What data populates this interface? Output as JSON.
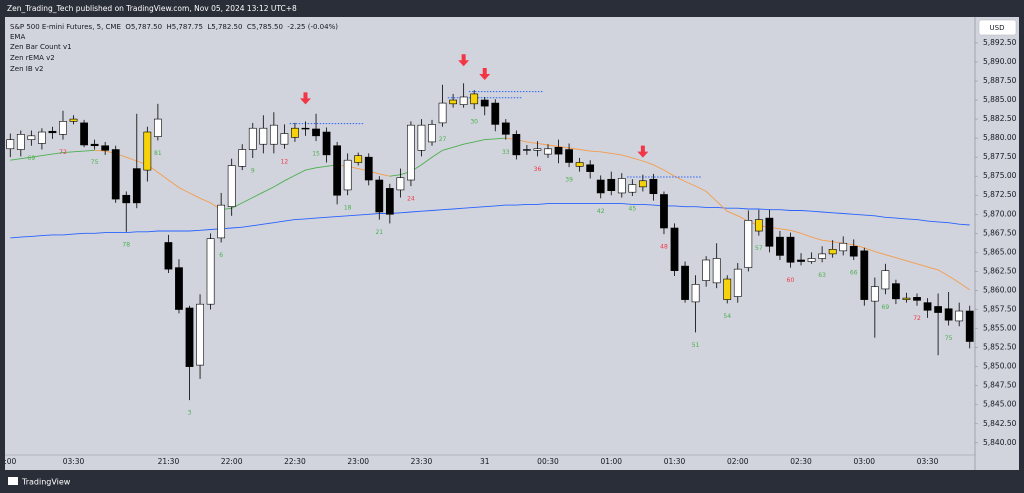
{
  "header": {
    "publisher": "Zen_Trading_Tech published on TradingView.com, Nov 05, 2024 13:12 UTC+8",
    "brand": "TradingView"
  },
  "chart_data": {
    "type": "candlestick",
    "legend_line": "S&P 500 E-mini Futures, 5, CME  O5,787.50  H5,787.75  L5,782.50  C5,785.50  -2.25 (-0.04%)",
    "currency": "USD",
    "categories": [
      ":00",
      null,
      null,
      null,
      null,
      null,
      "03:30",
      null,
      null,
      null,
      null,
      null,
      null,
      null,
      null,
      "21:30",
      null,
      null,
      null,
      null,
      null,
      "22:00",
      null,
      null,
      null,
      null,
      null,
      "22:30",
      null,
      null,
      null,
      null,
      null,
      "23:00",
      null,
      null,
      null,
      null,
      null,
      "23:30",
      null,
      null,
      null,
      null,
      null,
      "31",
      null,
      null,
      null,
      null,
      null,
      "00:30",
      null,
      null,
      null,
      null,
      null,
      "01:00",
      null,
      null,
      null,
      null,
      null,
      "01:30",
      null,
      null,
      null,
      null,
      null,
      "02:00",
      null,
      null,
      null,
      null,
      null,
      "02:30",
      null,
      null,
      null,
      null,
      null,
      "03:00",
      null,
      null,
      null,
      null,
      null,
      "03:30",
      null,
      null,
      null,
      null
    ],
    "ohlc": [
      [
        5878.6,
        5880.6,
        5877.5,
        5879.8
      ],
      [
        5878.5,
        5881,
        5877.6,
        5880.5
      ],
      [
        5879.8,
        5881,
        5879,
        5880.3
      ],
      [
        5879.3,
        5881.3,
        5878.5,
        5880.8
      ],
      [
        5880.9,
        5881.5,
        5879.9,
        5880.7
      ],
      [
        5880.5,
        5883.6,
        5879.8,
        5882.2
      ],
      [
        5882.2,
        5883,
        5881.8,
        5882.5
      ],
      [
        5882,
        5882.4,
        5878.8,
        5879.1
      ],
      [
        5879.2,
        5879.8,
        5878.5,
        5879
      ],
      [
        5879,
        5879.5,
        5877.8,
        5878.4
      ],
      [
        5878.5,
        5879,
        5871.5,
        5872
      ],
      [
        5872.5,
        5873,
        5867.7,
        5871.5
      ],
      [
        5876,
        5883.2,
        5870.8,
        5871.5
      ],
      [
        5875.8,
        5881.5,
        5874.3,
        5880.8
      ],
      [
        5880.2,
        5884.5,
        5879.7,
        5882.5
      ],
      [
        5866.3,
        5867.3,
        5862.3,
        5862.8
      ],
      [
        5863,
        5864.1,
        5857,
        5857.5
      ],
      [
        5857.7,
        5858,
        5845.6,
        5850
      ],
      [
        5850.2,
        5859.5,
        5848.4,
        5858.2
      ],
      [
        5858.2,
        5867.5,
        5857.5,
        5866.8
      ],
      [
        5866.9,
        5872.8,
        5866.3,
        5871.2
      ],
      [
        5871,
        5877.3,
        5869.8,
        5876.4
      ],
      [
        5876.3,
        5879.2,
        5875.8,
        5878.5
      ],
      [
        5878.5,
        5882,
        5877.4,
        5881.3
      ],
      [
        5879.2,
        5883,
        5878,
        5881.3
      ],
      [
        5879.2,
        5883.4,
        5878,
        5881.7
      ],
      [
        5879.2,
        5881.8,
        5878.6,
        5880.6
      ],
      [
        5880.1,
        5882,
        5879.5,
        5881.3
      ],
      [
        5881.3,
        5882.2,
        5880.3,
        5881.2
      ],
      [
        5881.2,
        5883.2,
        5879.6,
        5880.3
      ],
      [
        5880.8,
        5881.4,
        5876.8,
        5877.8
      ],
      [
        5879,
        5879.5,
        5871.3,
        5872.5
      ],
      [
        5873.2,
        5878,
        5872.5,
        5877.1
      ],
      [
        5877.7,
        5878.1,
        5876.4,
        5876.8
      ],
      [
        5877.5,
        5878,
        5873.8,
        5874.5
      ],
      [
        5874.5,
        5875,
        5869.3,
        5870.3
      ],
      [
        5873.4,
        5874,
        5868.8,
        5870
      ],
      [
        5873.2,
        5876,
        5872.2,
        5874.8
      ],
      [
        5874.5,
        5882.2,
        5873.7,
        5881.7
      ],
      [
        5878.4,
        5882.5,
        5877.6,
        5881.7
      ],
      [
        5879.5,
        5882.4,
        5879,
        5881.8
      ],
      [
        5882,
        5887,
        5881.5,
        5884.6
      ],
      [
        5884.5,
        5885.8,
        5884,
        5885
      ],
      [
        5884.4,
        5887.2,
        5884,
        5885.4
      ],
      [
        5884.5,
        5886.3,
        5883.8,
        5885.8
      ],
      [
        5885,
        5885.4,
        5883,
        5884.2
      ],
      [
        5884.6,
        5885.1,
        5880.9,
        5881.8
      ],
      [
        5882,
        5882.5,
        5879.8,
        5880.5
      ],
      [
        5880.5,
        5881,
        5877.2,
        5877.8
      ],
      [
        5878.5,
        5879.1,
        5877.8,
        5878.4
      ],
      [
        5878.4,
        5879.6,
        5877.6,
        5878.6
      ],
      [
        5877.9,
        5879.2,
        5877.4,
        5878.6
      ],
      [
        5878.8,
        5879.8,
        5876.7,
        5877.9
      ],
      [
        5878.5,
        5879.3,
        5876.2,
        5876.8
      ],
      [
        5876.8,
        5877.4,
        5875.6,
        5876.3
      ],
      [
        5876.5,
        5877.1,
        5874.7,
        5875.6
      ],
      [
        5874.5,
        5875.1,
        5872.1,
        5872.8
      ],
      [
        5874.6,
        5875.6,
        5872.5,
        5873.1
      ],
      [
        5872.8,
        5875.4,
        5872.2,
        5874.7
      ],
      [
        5872.9,
        5874.6,
        5872.4,
        5873.9
      ],
      [
        5873.6,
        5875.2,
        5873,
        5874.4
      ],
      [
        5874.6,
        5875.3,
        5871.8,
        5872.7
      ],
      [
        5872.6,
        5873,
        5867.4,
        5868.2
      ],
      [
        5868.2,
        5868.8,
        5861.9,
        5862.6
      ],
      [
        5863.2,
        5863.8,
        5858.4,
        5858.8
      ],
      [
        5858.5,
        5862,
        5854.5,
        5860.8
      ],
      [
        5861.3,
        5864.5,
        5860.5,
        5864
      ],
      [
        5861,
        5866.2,
        5860.3,
        5864.2
      ],
      [
        5861.5,
        5862,
        5858.3,
        5858.8
      ],
      [
        5859.2,
        5863.6,
        5858.4,
        5862.8
      ],
      [
        5863,
        5870.5,
        5862.5,
        5869.2
      ],
      [
        5869.3,
        5870.6,
        5867.2,
        5867.8
      ],
      [
        5869.5,
        5870.6,
        5865,
        5865.8
      ],
      [
        5867,
        5867.8,
        5864,
        5864.6
      ],
      [
        5867,
        5867.6,
        5863,
        5863.7
      ],
      [
        5864,
        5864.9,
        5863.3,
        5863.8
      ],
      [
        5863.8,
        5865,
        5863.5,
        5864.2
      ],
      [
        5864.2,
        5865.8,
        5863.7,
        5864.8
      ],
      [
        5864.8,
        5866.6,
        5864.3,
        5865.4
      ],
      [
        5865.2,
        5867.1,
        5864.6,
        5866.2
      ],
      [
        5865.8,
        5866.7,
        5864,
        5864.5
      ],
      [
        5865.2,
        5865.6,
        5858,
        5858.8
      ],
      [
        5858.6,
        5861.7,
        5853.8,
        5860.5
      ],
      [
        5860.2,
        5863.5,
        5859.5,
        5862.6
      ],
      [
        5860.9,
        5861.4,
        5858.2,
        5858.9
      ],
      [
        5859,
        5859.7,
        5858.4,
        5858.8
      ],
      [
        5859.1,
        5859.6,
        5858,
        5858.7
      ],
      [
        5858.4,
        5859,
        5856.4,
        5857.4
      ],
      [
        5857.9,
        5859.6,
        5851.5,
        5857.1
      ],
      [
        5857.6,
        5859.8,
        5855.4,
        5856.1
      ],
      [
        5856,
        5858.4,
        5855.3,
        5857.3
      ],
      [
        5857.3,
        5858,
        5852.4,
        5853.3
      ]
    ],
    "up_color": "#ffffff",
    "down_color": "#000000",
    "highlight_color": "#f5d20a",
    "highlighted": [
      6,
      13,
      27,
      33,
      42,
      44,
      54,
      60,
      68,
      71,
      78,
      85
    ],
    "series": [
      {
        "name": "EMA",
        "color": "#2962ff",
        "values": [
          5866.9,
          5867.0,
          5867.1,
          5867.2,
          5867.3,
          5867.3,
          5867.4,
          5867.5,
          5867.5,
          5867.6,
          5867.6,
          5867.6,
          5867.7,
          5867.7,
          5867.8,
          5867.8,
          5867.8,
          5867.8,
          5867.9,
          5868.0,
          5868.1,
          5868.2,
          5868.3,
          5868.5,
          5868.7,
          5868.9,
          5869.1,
          5869.3,
          5869.4,
          5869.5,
          5869.6,
          5869.7,
          5869.8,
          5869.9,
          5870.0,
          5870.1,
          5870.1,
          5870.2,
          5870.3,
          5870.4,
          5870.5,
          5870.6,
          5870.7,
          5870.8,
          5870.9,
          5871.0,
          5871.1,
          5871.2,
          5871.2,
          5871.3,
          5871.3,
          5871.4,
          5871.4,
          5871.4,
          5871.4,
          5871.4,
          5871.4,
          5871.4,
          5871.4,
          5871.3,
          5871.3,
          5871.2,
          5871.1,
          5871.1,
          5871.0,
          5871.0,
          5870.9,
          5870.9,
          5870.8,
          5870.8,
          5870.7,
          5870.7,
          5870.6,
          5870.6,
          5870.5,
          5870.5,
          5870.4,
          5870.3,
          5870.2,
          5870.1,
          5870.0,
          5869.9,
          5869.8,
          5869.6,
          5869.5,
          5869.4,
          5869.3,
          5869.1,
          5869.0,
          5868.9,
          5868.7,
          5868.6
        ]
      },
      {
        "name": "Zen rEMA v2",
        "rising_color": "#4caf50",
        "falling_color": "#f59c4c",
        "values": [
          5877.1,
          5877.3,
          5877.5,
          5877.7,
          5877.9,
          5878.1,
          5878.2,
          5878.3,
          5878.4,
          5878.3,
          5878.0,
          5877.5,
          5877.0,
          5876.5,
          5875.5,
          5874.5,
          5873.5,
          5872.8,
          5872.1,
          5871.5,
          5870.6,
          5870.8,
          5871.5,
          5872.2,
          5872.9,
          5873.6,
          5874.4,
          5875.1,
          5875.8,
          5876.1,
          5876.3,
          5876.5,
          5876.3,
          5876.0,
          5875.7,
          5875.3,
          5875.0,
          5875.2,
          5875.6,
          5876.5,
          5877.5,
          5878.4,
          5878.8,
          5879.2,
          5879.5,
          5879.8,
          5879.9,
          5880.0,
          5879.8,
          5879.5,
          5879.3,
          5879.1,
          5878.9,
          5878.7,
          5878.5,
          5878.3,
          5878.2,
          5878.0,
          5877.8,
          5877.4,
          5877.0,
          5876.5,
          5875.8,
          5875.0,
          5874.3,
          5873.7,
          5873.0,
          5871.7,
          5870.4,
          5869.8,
          5869.1,
          5868.5,
          5868.3,
          5868.1,
          5867.9,
          5867.5,
          5867.0,
          5866.6,
          5866.4,
          5866.2,
          5866.0,
          5865.6,
          5865.1,
          5864.7,
          5864.3,
          5863.9,
          5863.5,
          5863.1,
          5862.7,
          5861.9,
          5861.0,
          5860.1
        ]
      }
    ],
    "bar_count": {
      "name": "Zen Bar Count v1",
      "labels": [
        {
          "bar": 2,
          "value": 69,
          "color": "#4caf50"
        },
        {
          "bar": 5,
          "value": 72,
          "color": "#f23645"
        },
        {
          "bar": 8,
          "value": 75,
          "color": "#4caf50"
        },
        {
          "bar": 11,
          "value": 78,
          "color": "#4caf50"
        },
        {
          "bar": 14,
          "value": 81,
          "color": "#4caf50"
        },
        {
          "bar": 17,
          "value": 3,
          "color": "#4caf50"
        },
        {
          "bar": 20,
          "value": 6,
          "color": "#4caf50"
        },
        {
          "bar": 23,
          "value": 9,
          "color": "#4caf50"
        },
        {
          "bar": 26,
          "value": 12,
          "color": "#f23645"
        },
        {
          "bar": 29,
          "value": 15,
          "color": "#4caf50"
        },
        {
          "bar": 32,
          "value": 18,
          "color": "#4caf50"
        },
        {
          "bar": 35,
          "value": 21,
          "color": "#4caf50"
        },
        {
          "bar": 38,
          "value": 24,
          "color": "#f23645"
        },
        {
          "bar": 41,
          "value": 27,
          "color": "#4caf50"
        },
        {
          "bar": 44,
          "value": 30,
          "color": "#4caf50"
        },
        {
          "bar": 47,
          "value": 33,
          "color": "#4caf50"
        },
        {
          "bar": 50,
          "value": 36,
          "color": "#f23645"
        },
        {
          "bar": 53,
          "value": 39,
          "color": "#4caf50"
        },
        {
          "bar": 56,
          "value": 42,
          "color": "#4caf50"
        },
        {
          "bar": 59,
          "value": 45,
          "color": "#4caf50"
        },
        {
          "bar": 62,
          "value": 48,
          "color": "#f23645"
        },
        {
          "bar": 65,
          "value": 51,
          "color": "#4caf50"
        },
        {
          "bar": 68,
          "value": 54,
          "color": "#4caf50"
        },
        {
          "bar": 71,
          "value": 57,
          "color": "#4caf50"
        },
        {
          "bar": 74,
          "value": 60,
          "color": "#f23645"
        },
        {
          "bar": 77,
          "value": 63,
          "color": "#4caf50"
        },
        {
          "bar": 80,
          "value": 66,
          "color": "#4caf50"
        },
        {
          "bar": 83,
          "value": 69,
          "color": "#4caf50"
        },
        {
          "bar": 86,
          "value": 72,
          "color": "#f23645"
        },
        {
          "bar": 89,
          "value": 75,
          "color": "#4caf50"
        }
      ]
    },
    "ib": {
      "name": "Zen IB v2",
      "color": "#2962ff",
      "arrow_color": "#f23645",
      "arrows": [
        28,
        43,
        45,
        60
      ],
      "levels": [
        {
          "value": 5881.9,
          "start": 27,
          "end": 33
        },
        {
          "value": 5886.1,
          "start": 44,
          "end": 50
        },
        {
          "value": 5885.3,
          "start": 42,
          "end": 48
        },
        {
          "value": 5874.9,
          "start": 59,
          "end": 65
        }
      ]
    },
    "ylim": [
      5838.4,
      5895.9
    ],
    "yticks": [
      {
        "value": 5840,
        "label": "5,840.00"
      },
      {
        "value": 5842.5,
        "label": "5,842.50"
      },
      {
        "value": 5845,
        "label": "5,845.00"
      },
      {
        "value": 5847.5,
        "label": "5,847.50"
      },
      {
        "value": 5850,
        "label": "5,850.00"
      },
      {
        "value": 5852.5,
        "label": "5,852.50"
      },
      {
        "value": 5855,
        "label": "5,855.00"
      },
      {
        "value": 5857.5,
        "label": "5,857.50"
      },
      {
        "value": 5860,
        "label": "5,860.00"
      },
      {
        "value": 5862.5,
        "label": "5,862.50"
      },
      {
        "value": 5865,
        "label": "5,865.00"
      },
      {
        "value": 5867.5,
        "label": "5,867.50"
      },
      {
        "value": 5870,
        "label": "5,870.00"
      },
      {
        "value": 5872.5,
        "label": "5,872.50"
      },
      {
        "value": 5875,
        "label": "5,875.00"
      },
      {
        "value": 5877.5,
        "label": "5,877.50"
      },
      {
        "value": 5880,
        "label": "5,880.00"
      },
      {
        "value": 5882.5,
        "label": "5,882.50"
      },
      {
        "value": 5885,
        "label": "5,885.00"
      },
      {
        "value": 5887.5,
        "label": "5,887.50"
      },
      {
        "value": 5890,
        "label": "5,890.00"
      },
      {
        "value": 5892.5,
        "label": "5,892.50"
      }
    ],
    "grid": false
  }
}
